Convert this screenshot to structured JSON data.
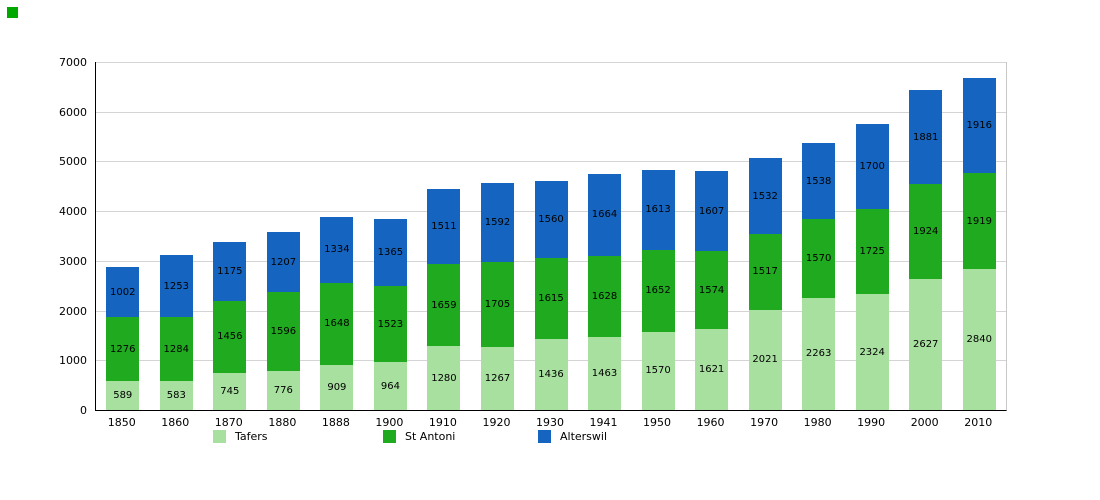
{
  "marker_color": "#00a800",
  "chart_data": {
    "type": "bar",
    "stacked": true,
    "title": "",
    "xlabel": "",
    "ylabel": "",
    "categories": [
      "1850",
      "1860",
      "1870",
      "1880",
      "1888",
      "1900",
      "1910",
      "1920",
      "1930",
      "1941",
      "1950",
      "1960",
      "1970",
      "1980",
      "1990",
      "2000",
      "2010"
    ],
    "series": [
      {
        "name": "Tafers",
        "color": "#a8e0a0",
        "values": [
          589,
          583,
          745,
          776,
          909,
          964,
          1280,
          1267,
          1436,
          1463,
          1570,
          1621,
          2021,
          2263,
          2324,
          2627,
          2840
        ]
      },
      {
        "name": "St Antoni",
        "color": "#1faa1f",
        "values": [
          1276,
          1284,
          1456,
          1596,
          1648,
          1523,
          1659,
          1705,
          1615,
          1628,
          1652,
          1574,
          1517,
          1570,
          1725,
          1924,
          1919
        ]
      },
      {
        "name": "Alterswil",
        "color": "#1565c0",
        "values": [
          1002,
          1253,
          1175,
          1207,
          1334,
          1365,
          1511,
          1592,
          1560,
          1664,
          1613,
          1607,
          1532,
          1538,
          1700,
          1881,
          1916
        ]
      }
    ],
    "ylim": [
      0,
      7000
    ],
    "ytick_step": 1000,
    "grid": true,
    "legend_position": "bottom"
  }
}
